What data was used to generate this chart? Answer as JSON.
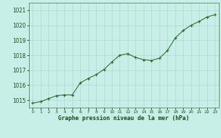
{
  "x": [
    0,
    1,
    2,
    3,
    4,
    5,
    6,
    7,
    8,
    9,
    10,
    11,
    12,
    13,
    14,
    15,
    16,
    17,
    18,
    19,
    20,
    21,
    22,
    23
  ],
  "y": [
    1014.8,
    1014.9,
    1015.1,
    1015.3,
    1015.35,
    1015.35,
    1016.15,
    1016.45,
    1016.7,
    1017.05,
    1017.55,
    1018.0,
    1018.1,
    1017.85,
    1017.7,
    1017.65,
    1017.8,
    1018.3,
    1019.15,
    1019.65,
    1020.0,
    1020.25,
    1020.55,
    1020.7
  ],
  "ylim": [
    1014.5,
    1021.5
  ],
  "yticks": [
    1015,
    1016,
    1017,
    1018,
    1019,
    1020,
    1021
  ],
  "xticks": [
    0,
    1,
    2,
    3,
    4,
    5,
    6,
    7,
    8,
    9,
    10,
    11,
    12,
    13,
    14,
    15,
    16,
    17,
    18,
    19,
    20,
    21,
    22,
    23
  ],
  "line_color": "#2d6a2d",
  "marker_color": "#2d6a2d",
  "bg_color": "#c8eee8",
  "grid_color": "#aacccc",
  "xlabel": "Graphe pression niveau de la mer (hPa)",
  "xlabel_color": "#1a4a1a",
  "tick_label_color": "#1a4a1a",
  "figsize": [
    3.2,
    2.0
  ],
  "dpi": 100
}
